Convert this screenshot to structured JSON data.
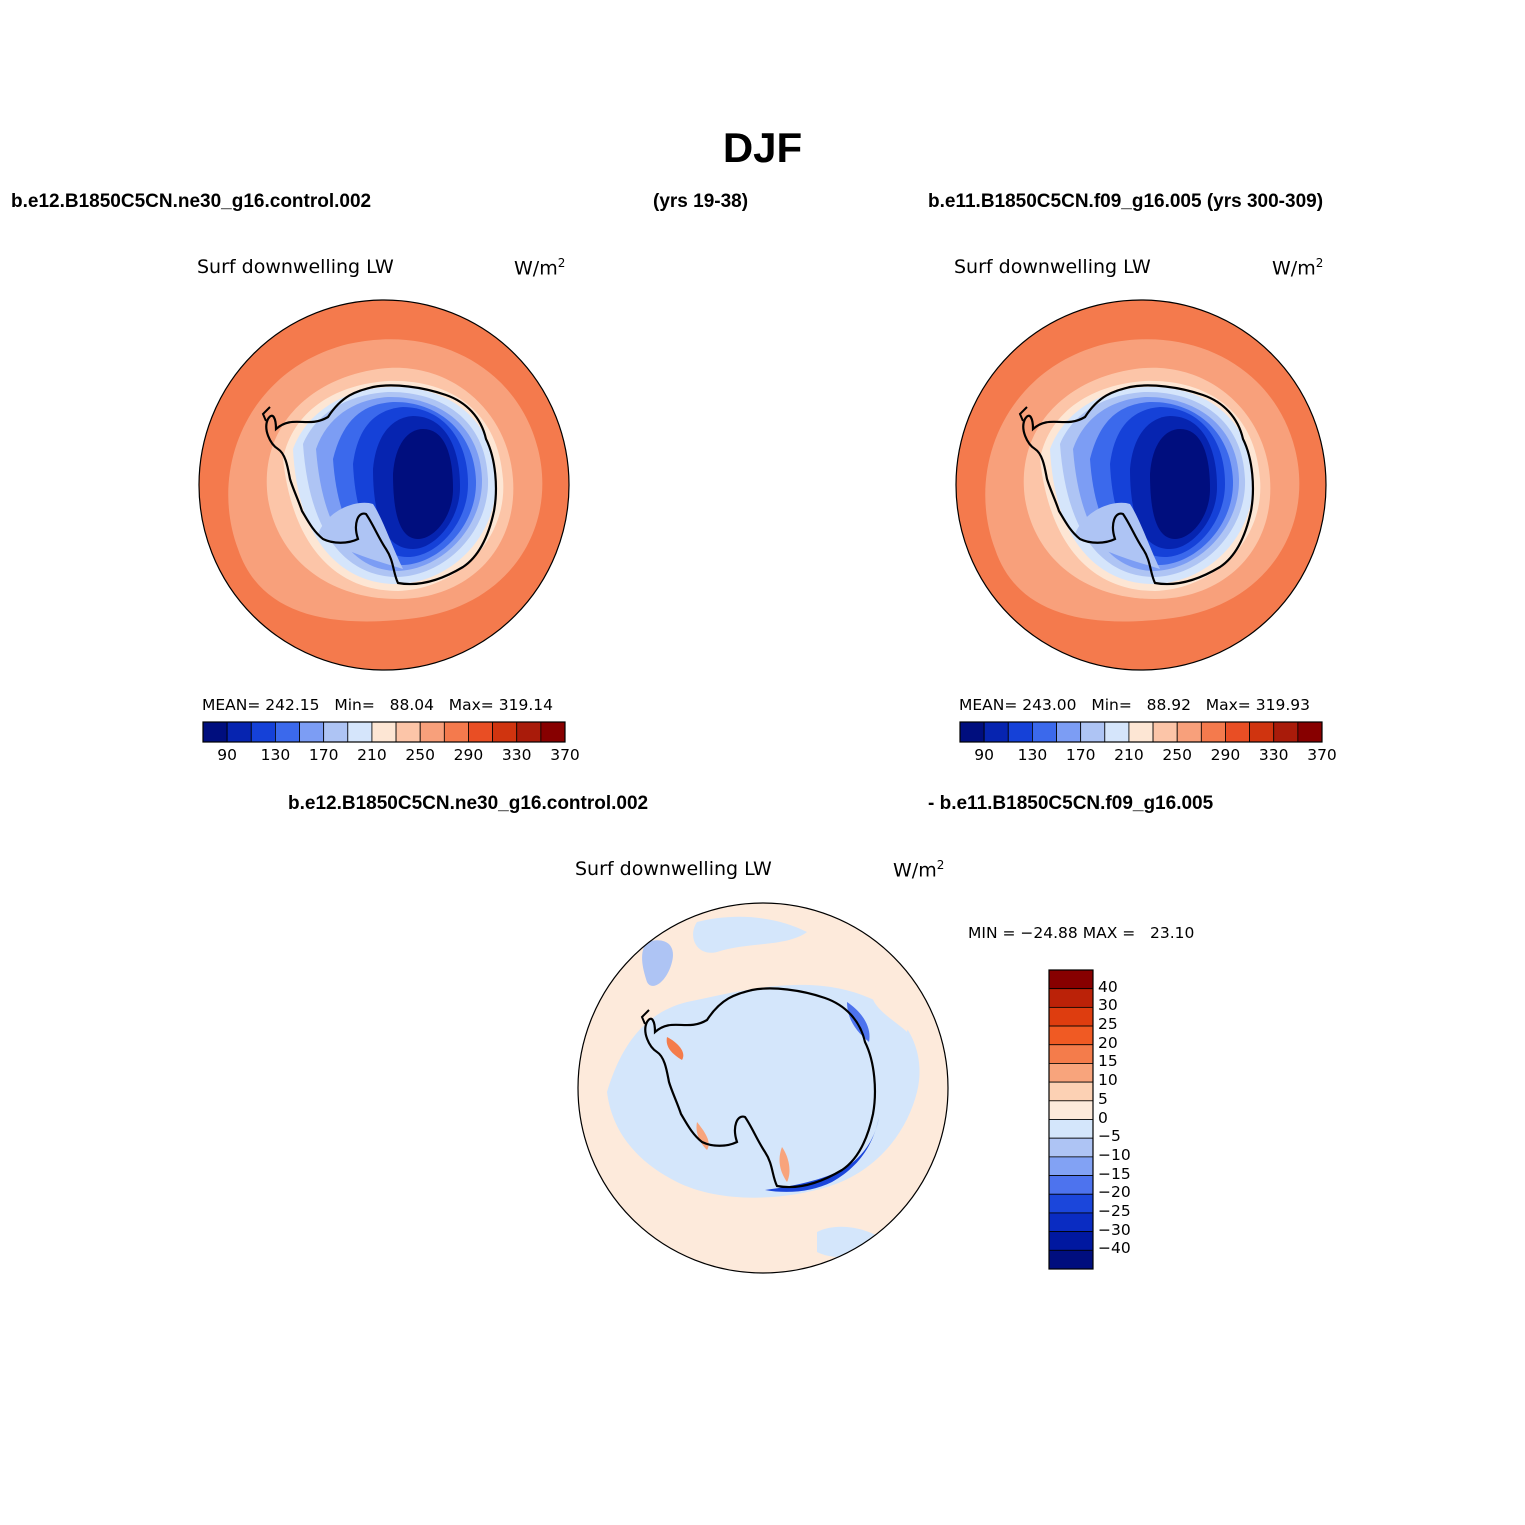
{
  "title": "DJF",
  "top_left_case": "b.e12.B1850C5CN.ne30_g16.control.002",
  "top_left_years": "(yrs 19-38)",
  "top_right_case": "b.e11.B1850C5CN.f09_g16.005 (yrs 300-309)",
  "diff_case_a": "b.e12.B1850C5CN.ne30_g16.control.002",
  "diff_case_b": "- b.e11.B1850C5CN.f09_g16.005",
  "panels": [
    {
      "variable": "Surf downwelling LW",
      "units": "W/m",
      "units_sup": "2",
      "stats": {
        "mean_label": "MEAN=",
        "mean": "242.15",
        "min_label": "Min=",
        "min": "88.04",
        "max_label": "Max=",
        "max": "319.14"
      }
    },
    {
      "variable": "Surf downwelling LW",
      "units": "W/m",
      "units_sup": "2",
      "stats": {
        "mean_label": "MEAN=",
        "mean": "243.00",
        "min_label": "Min=",
        "min": "88.92",
        "max_label": "Max=",
        "max": "319.93"
      }
    },
    {
      "variable": "Surf downwelling LW",
      "units": "W/m",
      "units_sup": "2",
      "stats": {
        "min_label": "MIN =",
        "min": "−24.88",
        "max_label": "MAX =",
        "max": "23.10"
      }
    }
  ],
  "colorbar_abs": {
    "colors": [
      "#000e7e",
      "#0624b0",
      "#1541d8",
      "#3b69ec",
      "#7c9df4",
      "#aec4f4",
      "#d5e5fb",
      "#fde6d4",
      "#fcc5a8",
      "#f8a07b",
      "#f47a4d",
      "#e94e24",
      "#d0340f",
      "#a91b0a",
      "#870000"
    ],
    "labels": [
      "90",
      "130",
      "170",
      "210",
      "250",
      "290",
      "330",
      "370"
    ]
  },
  "colorbar_diff": {
    "colors": [
      "#870000",
      "#bb2208",
      "#de3d0f",
      "#f05a23",
      "#f47c4b",
      "#f8a47c",
      "#fcd1b4",
      "#fdeadb",
      "#d4e6fb",
      "#aec4f4",
      "#82a2f4",
      "#4d73ee",
      "#1b46db",
      "#0a2cc2",
      "#0018a0",
      "#000e7e"
    ],
    "labels": [
      "40",
      "30",
      "25",
      "20",
      "15",
      "10",
      "5",
      "0",
      "−5",
      "−10",
      "−15",
      "−20",
      "−25",
      "−30",
      "−40"
    ]
  }
}
